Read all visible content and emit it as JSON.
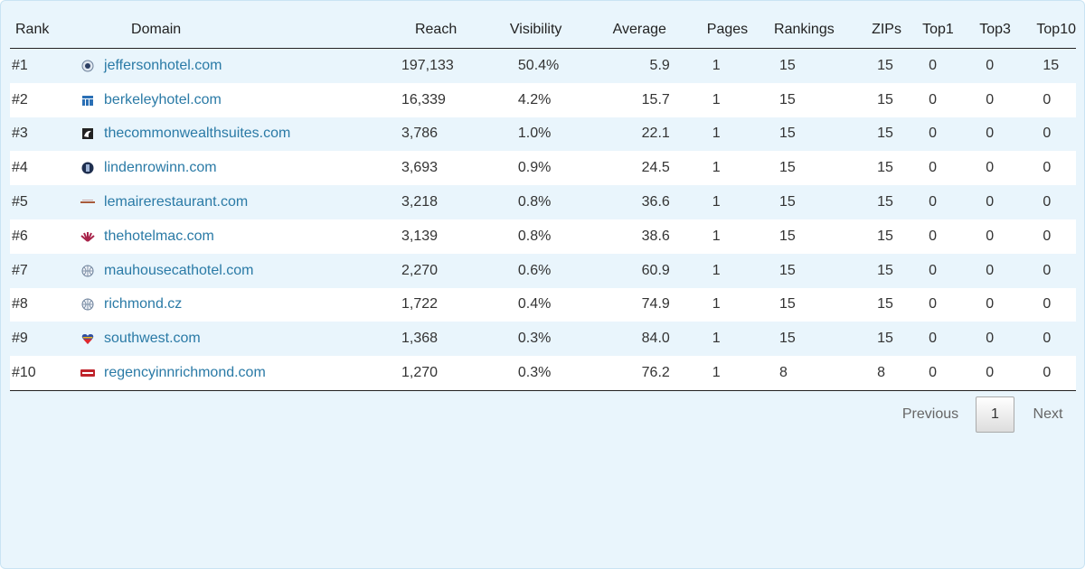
{
  "table": {
    "headers": {
      "rank": "Rank",
      "domain": "Domain",
      "reach": "Reach",
      "visibility": "Visibility",
      "average": "Average",
      "pages": "Pages",
      "rankings": "Rankings",
      "zips": "ZIPs",
      "top1": "Top1",
      "top3": "Top3",
      "top10": "Top10"
    },
    "rows": [
      {
        "rank": "#1",
        "domain": "jeffersonhotel.com",
        "icon": "jefferson-seal-icon",
        "reach": "197,133",
        "visibility": "50.4%",
        "average": "5.9",
        "pages": "1",
        "rankings": "15",
        "zips": "15",
        "top1": "0",
        "top3": "0",
        "top10": "15"
      },
      {
        "rank": "#2",
        "domain": "berkeleyhotel.com",
        "icon": "berkeley-building-icon",
        "reach": "16,339",
        "visibility": "4.2%",
        "average": "15.7",
        "pages": "1",
        "rankings": "15",
        "zips": "15",
        "top1": "0",
        "top3": "0",
        "top10": "0"
      },
      {
        "rank": "#3",
        "domain": "thecommonwealthsuites.com",
        "icon": "commonwealth-logo-icon",
        "reach": "3,786",
        "visibility": "1.0%",
        "average": "22.1",
        "pages": "1",
        "rankings": "15",
        "zips": "15",
        "top1": "0",
        "top3": "0",
        "top10": "0"
      },
      {
        "rank": "#4",
        "domain": "lindenrowinn.com",
        "icon": "lindenrow-logo-icon",
        "reach": "3,693",
        "visibility": "0.9%",
        "average": "24.5",
        "pages": "1",
        "rankings": "15",
        "zips": "15",
        "top1": "0",
        "top3": "0",
        "top10": "0"
      },
      {
        "rank": "#5",
        "domain": "lemairerestaurant.com",
        "icon": "lemaire-wordmark-icon",
        "reach": "3,218",
        "visibility": "0.8%",
        "average": "36.6",
        "pages": "1",
        "rankings": "15",
        "zips": "15",
        "top1": "0",
        "top3": "0",
        "top10": "0"
      },
      {
        "rank": "#6",
        "domain": "thehotelmac.com",
        "icon": "hotelmac-fan-icon",
        "reach": "3,139",
        "visibility": "0.8%",
        "average": "38.6",
        "pages": "1",
        "rankings": "15",
        "zips": "15",
        "top1": "0",
        "top3": "0",
        "top10": "0"
      },
      {
        "rank": "#7",
        "domain": "mauhousecathotel.com",
        "icon": "globe-icon",
        "reach": "2,270",
        "visibility": "0.6%",
        "average": "60.9",
        "pages": "1",
        "rankings": "15",
        "zips": "15",
        "top1": "0",
        "top3": "0",
        "top10": "0"
      },
      {
        "rank": "#8",
        "domain": "richmond.cz",
        "icon": "globe-icon",
        "reach": "1,722",
        "visibility": "0.4%",
        "average": "74.9",
        "pages": "1",
        "rankings": "15",
        "zips": "15",
        "top1": "0",
        "top3": "0",
        "top10": "0"
      },
      {
        "rank": "#9",
        "domain": "southwest.com",
        "icon": "southwest-heart-icon",
        "reach": "1,368",
        "visibility": "0.3%",
        "average": "84.0",
        "pages": "1",
        "rankings": "15",
        "zips": "15",
        "top1": "0",
        "top3": "0",
        "top10": "0"
      },
      {
        "rank": "#10",
        "domain": "regencyinnrichmond.com",
        "icon": "regency-sign-icon",
        "reach": "1,270",
        "visibility": "0.3%",
        "average": "76.2",
        "pages": "1",
        "rankings": "8",
        "zips": "8",
        "top1": "0",
        "top3": "0",
        "top10": "0"
      }
    ]
  },
  "pagination": {
    "previous": "Previous",
    "current": "1",
    "next": "Next"
  },
  "colors": {
    "link": "#2a7aa6",
    "panel_bg": "#e9f5fc",
    "row_alt": "#ffffff"
  }
}
